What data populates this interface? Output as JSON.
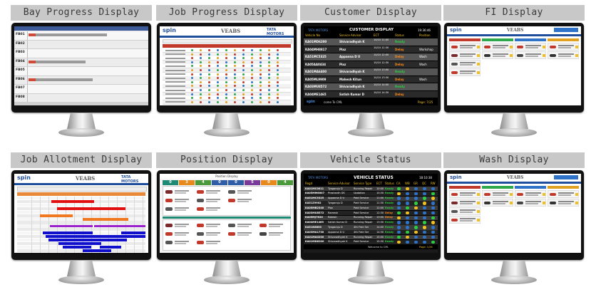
{
  "tiles": [
    {
      "label": "Bay Progress Display"
    },
    {
      "label": "Job Progress Display"
    },
    {
      "label": "Customer Display"
    },
    {
      "label": "FI Display"
    },
    {
      "label": "Job Allotment Display"
    },
    {
      "label": "Position Display"
    },
    {
      "label": "Vehicle Status"
    },
    {
      "label": "Wash Display"
    }
  ],
  "bay_progress": {
    "bays": [
      "FB01",
      "FB02",
      "FB03",
      "FB04",
      "FB05",
      "FB06",
      "FB07",
      "FB08"
    ],
    "colors": {
      "header": "#3d5a99",
      "grey_bar": "#9a9a9a"
    }
  },
  "job_progress": {
    "brand_left": "spin",
    "brand_center": "VEABS",
    "brand_right": "TATA MOTORS",
    "colors": {
      "header": "#c0392b",
      "brand": "#1f4e9c"
    }
  },
  "customer_display": {
    "brand": "TATA MOTORS",
    "title": "CUSTOMER DISPLAY",
    "time": "19:36:46",
    "headers": [
      "Vehicle No",
      "Service Advisor",
      "ECT",
      "Status",
      "Position"
    ],
    "rows": [
      {
        "vehicle": "KA01MD6200",
        "advisor": "Shivaradhyah K",
        "ect": "10/10 11:00",
        "status": "Ready",
        "position": ""
      },
      {
        "vehicle": "KA04MH8817",
        "advisor": "Piaz",
        "ect": "10/10 11:30",
        "status": "Delay",
        "position": "Workshop"
      },
      {
        "vehicle": "KA51MC5325",
        "advisor": "Appanna D U",
        "ect": "10/10 12:00",
        "status": "Delay",
        "position": "Wash"
      },
      {
        "vehicle": "KA05AA0434",
        "advisor": "Piaz",
        "ect": "10/10 12:30",
        "status": "Delay",
        "position": "Wash"
      },
      {
        "vehicle": "KA01MA6400",
        "advisor": "Shivaradhyah K",
        "ect": "10/10 13:00",
        "status": "Ready",
        "position": ""
      },
      {
        "vehicle": "KA05ML9909",
        "advisor": "Mahesh Kitun",
        "ect": "10/10 13:30",
        "status": "Delay",
        "position": "Wash"
      },
      {
        "vehicle": "KA03MU8572",
        "advisor": "Shivaradhyah K",
        "ect": "10/10 14:00",
        "status": "Ready",
        "position": ""
      },
      {
        "vehicle": "KA04ME1465",
        "advisor": "Satish Kumar D",
        "ect": "10/10 14:30",
        "status": "Delay",
        "position": ""
      }
    ],
    "footer_brand": "spin",
    "welcome": "come To CML",
    "page": "Page: 7/25"
  },
  "fi_display": {
    "brand_left": "spin",
    "brand_center": "VEABS"
  },
  "job_allotment": {
    "brand_left": "spin",
    "brand_center": "VEABS",
    "brand_right": "TATA MOTORS",
    "colors": {
      "red": "#e01010",
      "orange": "#f07820",
      "purple": "#9a22cc",
      "blue": "#1010cc"
    }
  },
  "position_display": {
    "title": "Position Display",
    "counts": [
      "0",
      "3",
      "4",
      "0",
      "0",
      "5",
      "0",
      "4"
    ],
    "colors": {
      "teal": "#1e8a74",
      "orange": "#e8891c",
      "blue": "#2f5da8",
      "green": "#4a9a3c",
      "purple": "#7a3a9a"
    }
  },
  "vehicle_status": {
    "brand": "TATA MOTORS",
    "title": "VEHICLE STATUS",
    "time": "18:10:38",
    "headers": [
      "Regd",
      "Service Advisor",
      "Service Type",
      "ECT",
      "Status",
      "CA",
      "WB",
      "GR",
      "QC",
      "RW"
    ],
    "rows": [
      {
        "reg": "KA01MC0011",
        "advisor": "Tyagaraju D",
        "type": "Running Repair",
        "ect": "10:00",
        "status": "Ready"
      },
      {
        "reg": "KA05MM6007",
        "advisor": "Prashanth DS",
        "type": "Updation",
        "ect": "10:30",
        "status": "Ready"
      },
      {
        "reg": "KA51MC5325",
        "advisor": "Appanna D U",
        "type": "Paid Service",
        "ect": "11:00",
        "status": "Ready"
      },
      {
        "reg": "KA51Z9902",
        "advisor": "Tyagaraju D",
        "type": "Paid Service",
        "ect": "11:30",
        "status": "Ready"
      },
      {
        "reg": "KA05MB2340",
        "advisor": "Piaz",
        "type": "Paid Service",
        "ect": "12:00",
        "status": "Ready"
      },
      {
        "reg": "KA03MU8572",
        "advisor": "Ramesh",
        "type": "Paid Service",
        "ect": "12:30",
        "status": "Delay"
      },
      {
        "reg": "KA05MJ7620",
        "advisor": "Rakesh",
        "type": "Running Repair",
        "ect": "13:00",
        "status": "Delay"
      },
      {
        "reg": "KA04ME1465",
        "advisor": "Satish Kumar D",
        "type": "Running Repair",
        "ect": "13:30",
        "status": "Ready"
      },
      {
        "reg": "KA51N8800",
        "advisor": "Tyagaraju D",
        "type": "4th Free Ser",
        "ect": "14:00",
        "status": "Ready"
      },
      {
        "reg": "KA03MA1730",
        "advisor": "Appanna D U",
        "type": "4th Free Ser",
        "ect": "14:30",
        "status": "Ready"
      },
      {
        "reg": "KA01MA0200",
        "advisor": "Shivaradhyah K",
        "type": "Running Repair",
        "ect": "15:00",
        "status": "Ready"
      },
      {
        "reg": "KA01MD6200",
        "advisor": "Shivaradhyah K",
        "type": "Paid Service",
        "ect": "15:30",
        "status": "Ready"
      }
    ],
    "welcome": "Welcome to CML",
    "page": "Page: 1/26"
  },
  "wash_display": {
    "brand_left": "spin",
    "brand_center": "VEABS"
  }
}
